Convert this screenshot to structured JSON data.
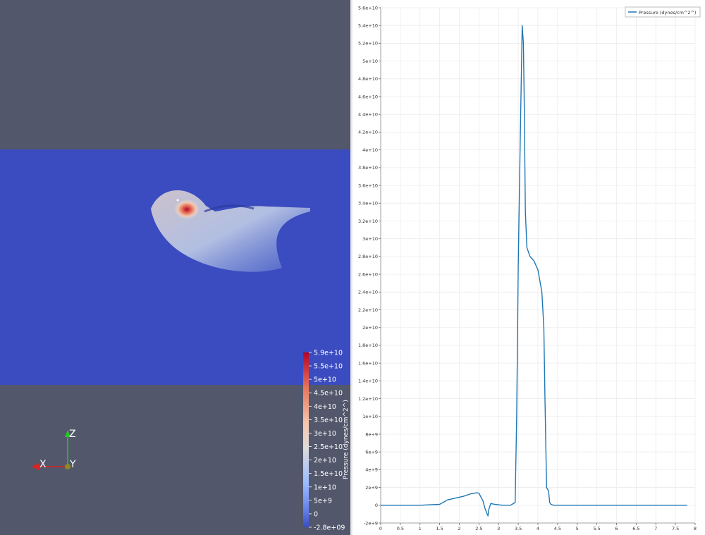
{
  "render_view": {
    "colorbar": {
      "title": "Pressure (dynes/cm^2^)",
      "ticks": [
        "5.9e+10",
        "5.5e+10",
        "5e+10",
        "4.5e+10",
        "4e+10",
        "3.5e+10",
        "3e+10",
        "2.5e+10",
        "2e+10",
        "1.5e+10",
        "1e+10",
        "5e+9",
        "0",
        "-2.8e+09"
      ],
      "colors": [
        "#b40426",
        "#3b4cc0"
      ]
    },
    "axes_widget": {
      "x_label": "X",
      "y_label": "Y",
      "z_label": "Z"
    },
    "colors": {
      "background": "#52576b",
      "slice": "#3b4cc0",
      "hot": "#b40426"
    }
  },
  "chart_data": {
    "type": "line",
    "title": "",
    "xlabel": "",
    "ylabel": "",
    "xlim": [
      0,
      8
    ],
    "ylim": [
      -2000000000.0,
      56000000000.0
    ],
    "x_ticks": [
      "0",
      "0.5",
      "1",
      "1.5",
      "2",
      "2.5",
      "3",
      "3.5",
      "4",
      "4.5",
      "5",
      "5.5",
      "6",
      "6.5",
      "7",
      "7.5",
      "8"
    ],
    "y_ticks": [
      "5.6e+10",
      "5.4e+10",
      "5.2e+10",
      "5e+10",
      "4.8e+10",
      "4.6e+10",
      "4.4e+10",
      "4.2e+10",
      "4e+10",
      "3.8e+10",
      "3.6e+10",
      "3.4e+10",
      "3.2e+10",
      "3e+10",
      "2.8e+10",
      "2.6e+10",
      "2.4e+10",
      "2.2e+10",
      "2e+10",
      "1.8e+10",
      "1.6e+10",
      "1.4e+10",
      "1.2e+10",
      "1e+10",
      "8e+9",
      "6e+9",
      "4e+9",
      "2e+9",
      "0",
      "-2e+9"
    ],
    "grid": true,
    "legend_position": "top-right",
    "series": [
      {
        "name": "Pressure (dynes/cm^2^)",
        "color": "#1f77b4",
        "x": [
          0,
          1.0,
          1.5,
          1.7,
          1.9,
          2.1,
          2.3,
          2.45,
          2.5,
          2.6,
          2.65,
          2.7,
          2.73,
          2.75,
          2.8,
          2.9,
          3.1,
          3.3,
          3.42,
          3.46,
          3.5,
          3.55,
          3.6,
          3.63,
          3.65,
          3.68,
          3.72,
          3.76,
          3.8,
          3.9,
          4.0,
          4.1,
          4.15,
          4.18,
          4.22,
          4.27,
          4.3,
          4.33,
          4.4,
          4.5,
          5,
          6,
          7,
          7.8
        ],
        "y": [
          0,
          0,
          100000000.0,
          600000000.0,
          800000000.0,
          1000000000.0,
          1300000000.0,
          1400000000.0,
          1350000000.0,
          500000000.0,
          -300000000.0,
          -900000000.0,
          -1200000000.0,
          -500000000.0,
          200000000.0,
          100000000.0,
          0,
          0,
          300000000.0,
          10000000000.0,
          27000000000.0,
          41000000000.0,
          54000000000.0,
          52000000000.0,
          46000000000.0,
          33000000000.0,
          29000000000.0,
          28500000000.0,
          28000000000.0,
          27500000000.0,
          26500000000.0,
          24000000000.0,
          20000000000.0,
          12000000000.0,
          2000000000.0,
          1600000000.0,
          300000000.0,
          100000000.0,
          0,
          0,
          0,
          0,
          0,
          0
        ]
      }
    ]
  }
}
